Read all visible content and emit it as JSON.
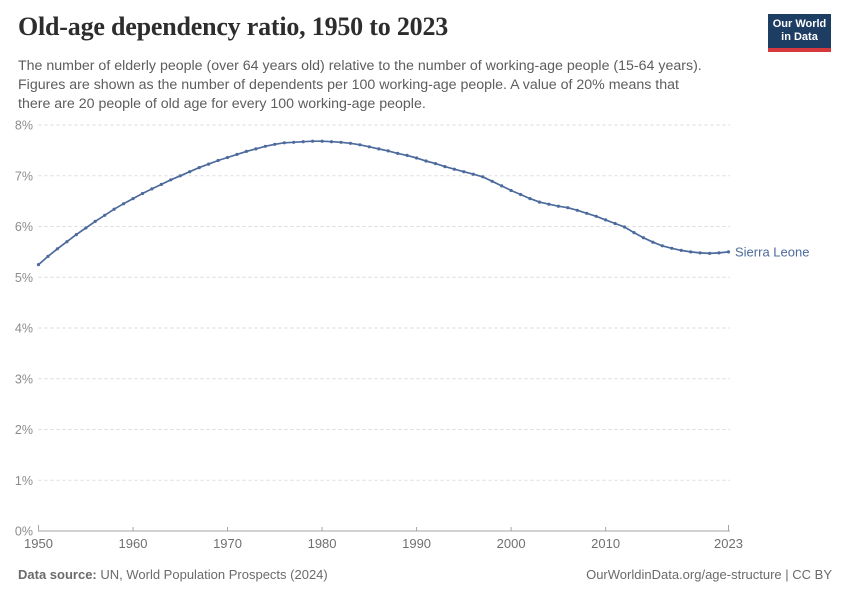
{
  "header": {
    "title": "Old-age dependency ratio, 1950 to 2023",
    "subtitle_lines": [
      "The number of elderly people (over 64 years old) relative to the number of working-age people (15-64 years).",
      "Figures are shown as the number of dependents per 100 working-age people. A value of 20% means that",
      "there are 20 people of old age for every 100 working-age people."
    ],
    "logo": {
      "line1": "Our World",
      "line2": "in Data",
      "bg_color": "#1d3d63",
      "accent_color": "#d7383e"
    }
  },
  "footer": {
    "source_label": "Data source:",
    "source_text": " UN, World Population Prospects (2024)",
    "link_text": "OurWorldinData.org/age-structure | CC BY"
  },
  "chart_data": {
    "type": "line",
    "title": "Old-age dependency ratio, 1950 to 2023",
    "xlabel": "",
    "ylabel": "",
    "unit": "%",
    "ylim": [
      0,
      8
    ],
    "yticks": [
      "0%",
      "1%",
      "2%",
      "3%",
      "4%",
      "5%",
      "6%",
      "7%",
      "8%"
    ],
    "xticks": [
      1950,
      1960,
      1970,
      1980,
      1990,
      2000,
      2010,
      2023
    ],
    "grid": "horizontal-dashed",
    "legend_position": "end-of-line-label",
    "x": [
      1950,
      1951,
      1952,
      1953,
      1954,
      1955,
      1956,
      1957,
      1958,
      1959,
      1960,
      1961,
      1962,
      1963,
      1964,
      1965,
      1966,
      1967,
      1968,
      1969,
      1970,
      1971,
      1972,
      1973,
      1974,
      1975,
      1976,
      1977,
      1978,
      1979,
      1980,
      1981,
      1982,
      1983,
      1984,
      1985,
      1986,
      1987,
      1988,
      1989,
      1990,
      1991,
      1992,
      1993,
      1994,
      1995,
      1996,
      1997,
      1998,
      1999,
      2000,
      2001,
      2002,
      2003,
      2004,
      2005,
      2006,
      2007,
      2008,
      2009,
      2010,
      2011,
      2012,
      2013,
      2014,
      2015,
      2016,
      2017,
      2018,
      2019,
      2020,
      2021,
      2022,
      2023
    ],
    "series": [
      {
        "name": "Sierra Leone",
        "color": "#4C6A9C",
        "values": [
          5.25,
          5.41,
          5.56,
          5.7,
          5.84,
          5.97,
          6.1,
          6.22,
          6.34,
          6.45,
          6.55,
          6.65,
          6.74,
          6.83,
          6.92,
          7.0,
          7.08,
          7.16,
          7.23,
          7.3,
          7.36,
          7.42,
          7.48,
          7.53,
          7.58,
          7.62,
          7.65,
          7.66,
          7.67,
          7.68,
          7.68,
          7.67,
          7.66,
          7.64,
          7.61,
          7.57,
          7.53,
          7.49,
          7.44,
          7.4,
          7.35,
          7.29,
          7.24,
          7.18,
          7.13,
          7.08,
          7.03,
          6.98,
          6.89,
          6.8,
          6.71,
          6.63,
          6.55,
          6.48,
          6.44,
          6.4,
          6.37,
          6.32,
          6.26,
          6.2,
          6.13,
          6.06,
          5.99,
          5.88,
          5.78,
          5.69,
          5.62,
          5.57,
          5.53,
          5.5,
          5.48,
          5.47,
          5.48,
          5.5
        ]
      }
    ]
  }
}
